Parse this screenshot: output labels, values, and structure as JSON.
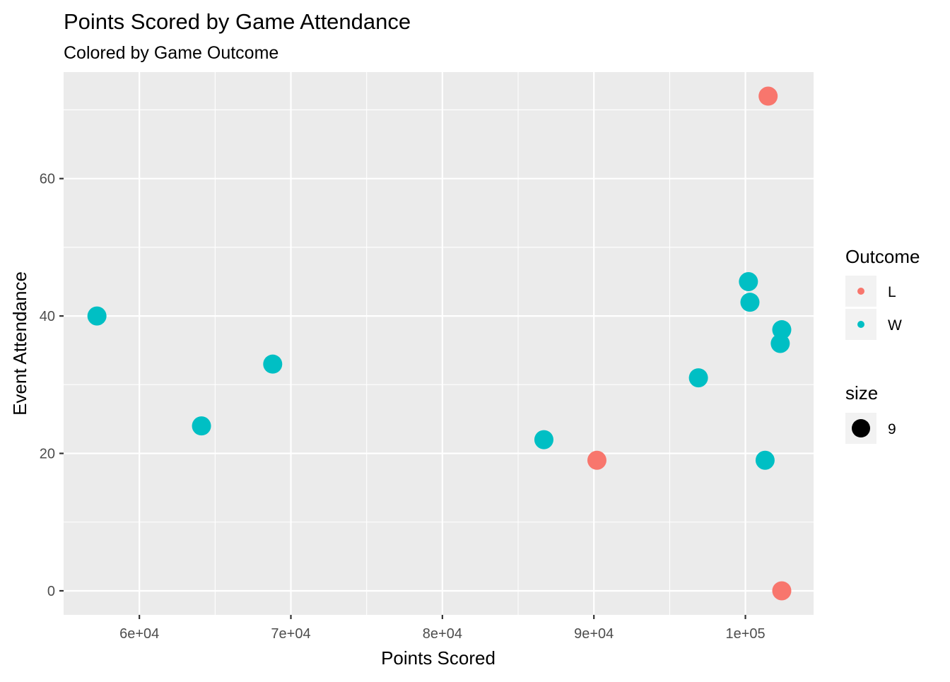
{
  "chart_data": {
    "type": "scatter",
    "title": "Points Scored by Game Attendance",
    "subtitle": "Colored by Game Outcome",
    "xlabel": "Points Scored",
    "ylabel": "Event Attendance",
    "xlim": [
      55000,
      104500
    ],
    "ylim": [
      -3.5,
      75.5
    ],
    "x_ticks": [
      60000,
      70000,
      80000,
      90000,
      100000
    ],
    "x_tick_labels": [
      "6e+04",
      "7e+04",
      "8e+04",
      "9e+04",
      "1e+05"
    ],
    "y_ticks": [
      0,
      20,
      40,
      60
    ],
    "y_tick_labels": [
      "0",
      "20",
      "40",
      "60"
    ],
    "grid": true,
    "panel_background": "#ebebeb",
    "grid_color": "#ffffff",
    "legend_position": "right",
    "legend": {
      "color": {
        "title": "Outcome",
        "entries": [
          {
            "label": "L",
            "color": "#F8766D"
          },
          {
            "label": "W",
            "color": "#00BFC4"
          }
        ]
      },
      "size": {
        "title": "size",
        "entries": [
          {
            "label": "9",
            "color": "#000000"
          }
        ]
      }
    },
    "series": [
      {
        "name": "L",
        "color": "#F8766D",
        "points": [
          {
            "x": 101500,
            "y": 72
          },
          {
            "x": 90200,
            "y": 19
          },
          {
            "x": 102400,
            "y": 0
          }
        ]
      },
      {
        "name": "W",
        "color": "#00BFC4",
        "points": [
          {
            "x": 57200,
            "y": 40
          },
          {
            "x": 64100,
            "y": 24
          },
          {
            "x": 68800,
            "y": 33
          },
          {
            "x": 86700,
            "y": 22
          },
          {
            "x": 96900,
            "y": 31
          },
          {
            "x": 100200,
            "y": 45
          },
          {
            "x": 100300,
            "y": 42
          },
          {
            "x": 102400,
            "y": 38
          },
          {
            "x": 102300,
            "y": 36
          },
          {
            "x": 101300,
            "y": 19
          }
        ]
      }
    ]
  }
}
